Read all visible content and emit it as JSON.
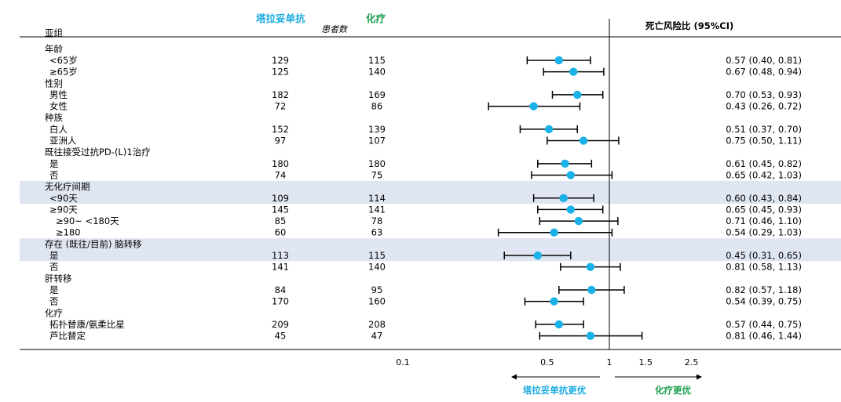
{
  "header": {
    "tisle_label": "塔拉妥单抗",
    "chemo_label": "化疗",
    "patients_label": "患者数",
    "subgroup_label": "亚组",
    "hr_label": "死亡风险比 (95%CI)"
  },
  "colors": {
    "tisle": "#1aabe0",
    "chemo": "#1a9e4b",
    "marker": "#1ab0e8",
    "highlight": "#dfe6f2"
  },
  "footer": {
    "favor_tisle": "塔拉妥单抗更优",
    "favor_chemo": "化疗更优"
  },
  "chart_data": {
    "type": "forest",
    "title": "死亡风险比 (95%CI)",
    "x_scale": "log",
    "x_ticks": [
      0.1,
      0.5,
      1,
      1.5,
      2.5
    ],
    "x_tick_labels": [
      "0.1",
      "0.5",
      "1",
      "1.5",
      "2.5"
    ],
    "reference_line": 1,
    "columns": [
      "塔拉妥单抗",
      "化疗"
    ],
    "rows": [
      {
        "label": "年龄",
        "indent": 0,
        "header": true
      },
      {
        "label": "<65岁",
        "indent": 1,
        "n1": "129",
        "n2": "115",
        "hr": 0.57,
        "lo": 0.4,
        "hi": 0.81,
        "text": "0.57 (0.40, 0.81)"
      },
      {
        "label": "≥65岁",
        "indent": 1,
        "n1": "125",
        "n2": "140",
        "hr": 0.67,
        "lo": 0.48,
        "hi": 0.94,
        "text": "0.67 (0.48, 0.94)"
      },
      {
        "label": "性别",
        "indent": 0,
        "header": true
      },
      {
        "label": "男性",
        "indent": 1,
        "n1": "182",
        "n2": "169",
        "hr": 0.7,
        "lo": 0.53,
        "hi": 0.93,
        "text": "0.70 (0.53, 0.93)"
      },
      {
        "label": "女性",
        "indent": 1,
        "n1": "72",
        "n2": "86",
        "hr": 0.43,
        "lo": 0.26,
        "hi": 0.72,
        "text": "0.43 (0.26, 0.72)"
      },
      {
        "label": "种族",
        "indent": 0,
        "header": true
      },
      {
        "label": "白人",
        "indent": 1,
        "n1": "152",
        "n2": "139",
        "hr": 0.51,
        "lo": 0.37,
        "hi": 0.7,
        "text": "0.51 (0.37, 0.70)"
      },
      {
        "label": "亚洲人",
        "indent": 1,
        "n1": "97",
        "n2": "107",
        "hr": 0.75,
        "lo": 0.5,
        "hi": 1.11,
        "text": "0.75 (0.50, 1.11)"
      },
      {
        "label": "既往接受过抗PD-(L)1治疗",
        "indent": 0,
        "header": true
      },
      {
        "label": "是",
        "indent": 1,
        "n1": "180",
        "n2": "180",
        "hr": 0.61,
        "lo": 0.45,
        "hi": 0.82,
        "text": "0.61 (0.45, 0.82)"
      },
      {
        "label": "否",
        "indent": 1,
        "n1": "74",
        "n2": "75",
        "hr": 0.65,
        "lo": 0.42,
        "hi": 1.03,
        "text": "0.65 (0.42, 1.03)"
      },
      {
        "label": "无化疗间期",
        "indent": 0,
        "header": true,
        "highlight": true
      },
      {
        "label": "<90天",
        "indent": 1,
        "n1": "109",
        "n2": "114",
        "hr": 0.6,
        "lo": 0.43,
        "hi": 0.84,
        "text": "0.60 (0.43, 0.84)",
        "highlight": true
      },
      {
        "label": "≥90天",
        "indent": 1,
        "n1": "145",
        "n2": "141",
        "hr": 0.65,
        "lo": 0.45,
        "hi": 0.93,
        "text": "0.65 (0.45, 0.93)"
      },
      {
        "label": "≥90~ <180天",
        "indent": 2,
        "n1": "85",
        "n2": "78",
        "hr": 0.71,
        "lo": 0.46,
        "hi": 1.1,
        "text": "0.71 (0.46, 1.10)"
      },
      {
        "label": "≥180",
        "indent": 2,
        "n1": "60",
        "n2": "63",
        "hr": 0.54,
        "lo": 0.29,
        "hi": 1.03,
        "text": "0.54 (0.29, 1.03)"
      },
      {
        "label": "存在 (既往/目前) 脑转移",
        "indent": 0,
        "header": true,
        "highlight": true
      },
      {
        "label": "是",
        "indent": 1,
        "n1": "113",
        "n2": "115",
        "hr": 0.45,
        "lo": 0.31,
        "hi": 0.65,
        "text": "0.45 (0.31, 0.65)",
        "highlight": true
      },
      {
        "label": "否",
        "indent": 1,
        "n1": "141",
        "n2": "140",
        "hr": 0.81,
        "lo": 0.58,
        "hi": 1.13,
        "text": "0.81 (0.58, 1.13)"
      },
      {
        "label": "肝转移",
        "indent": 0,
        "header": true
      },
      {
        "label": "是",
        "indent": 1,
        "n1": "84",
        "n2": "95",
        "hr": 0.82,
        "lo": 0.57,
        "hi": 1.18,
        "text": "0.82 (0.57, 1.18)"
      },
      {
        "label": "否",
        "indent": 1,
        "n1": "170",
        "n2": "160",
        "hr": 0.54,
        "lo": 0.39,
        "hi": 0.75,
        "text": "0.54 (0.39, 0.75)"
      },
      {
        "label": "化疗",
        "indent": 0,
        "header": true
      },
      {
        "label": "拓扑替康/氨柔比星",
        "indent": 1,
        "n1": "209",
        "n2": "208",
        "hr": 0.57,
        "lo": 0.44,
        "hi": 0.75,
        "text": "0.57 (0.44, 0.75)"
      },
      {
        "label": "芦比替定",
        "indent": 1,
        "n1": "45",
        "n2": "47",
        "hr": 0.81,
        "lo": 0.46,
        "hi": 1.44,
        "text": "0.81 (0.46, 1.44)"
      }
    ]
  }
}
